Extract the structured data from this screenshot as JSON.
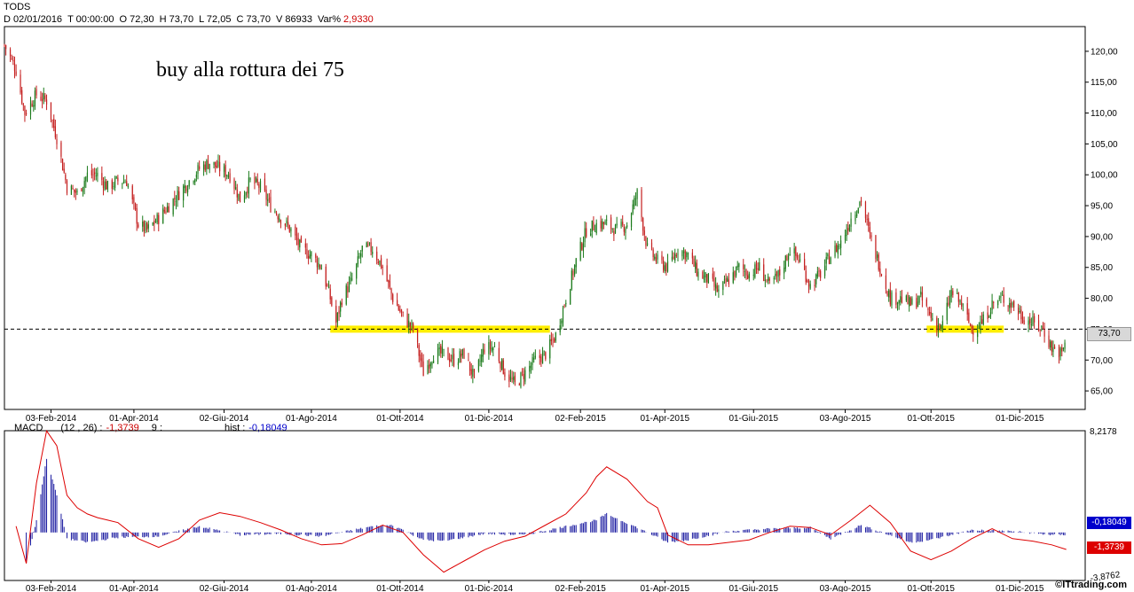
{
  "header": {
    "symbol": "TODS",
    "date": "D 02/01/2016",
    "time": "T 00:00:00",
    "open": "O 72,30",
    "high": "H 73,70",
    "low": "L 72,05",
    "close": "C 73,70",
    "volume": "V 86933",
    "var_label": "Var%",
    "var_value": "2,9330"
  },
  "annotation": "buy alla rottura dei 75",
  "last_price_label": "73,70",
  "macd_header": {
    "name": "MACD",
    "params": "(12 , 26) :",
    "macd_value": "-1,3739",
    "signal_label": "9 :",
    "hist_label": "hist :",
    "hist_value": "-0,18049"
  },
  "macd_axis": {
    "top": "8,2178",
    "bottom": "-3,8762",
    "hist_box": "-0,18049",
    "macd_box": "-1,3739"
  },
  "watermark": "©ITtrading.com",
  "colors": {
    "up": "#1a7a1a",
    "down": "#c41e1e",
    "highlight": "#ffee00",
    "macd_line": "#dd0000",
    "histogram": "#1a1aa0",
    "axis": "#000000",
    "hist_box": "#0000cc",
    "macd_box": "#dd0000"
  },
  "chart_data": [
    {
      "type": "candlestick",
      "title": "TODS",
      "y_ticks": [
        "65,00",
        "70,00",
        "75,00",
        "80,00",
        "85,00",
        "90,00",
        "95,00",
        "100,00",
        "105,00",
        "110,00",
        "115,00",
        "120,00"
      ],
      "ylim": [
        62,
        124
      ],
      "x_tick_labels": [
        "03-Feb-2014",
        "01-Apr-2014",
        "02-Giu-2014",
        "01-Ago-2014",
        "01-Ott-2014",
        "01-Dic-2014",
        "02-Feb-2015",
        "01-Apr-2015",
        "01-Giu-2015",
        "03-Ago-2015",
        "01-Ott-2015",
        "01-Dic-2015"
      ],
      "xlim": [
        "2014-01-02",
        "2016-01-15"
      ],
      "reference_line": 75,
      "close_path": [
        [
          "2014-01-02",
          121
        ],
        [
          "2014-01-10",
          117
        ],
        [
          "2014-01-16",
          110
        ],
        [
          "2014-01-24",
          113
        ],
        [
          "2014-01-31",
          112
        ],
        [
          "2014-02-07",
          106
        ],
        [
          "2014-02-14",
          98
        ],
        [
          "2014-02-21",
          97
        ],
        [
          "2014-02-28",
          100
        ],
        [
          "2014-03-07",
          100
        ],
        [
          "2014-03-14",
          98
        ],
        [
          "2014-03-21",
          99
        ],
        [
          "2014-03-27",
          99
        ],
        [
          "2014-04-04",
          92
        ],
        [
          "2014-04-10",
          91
        ],
        [
          "2014-04-18",
          93
        ],
        [
          "2014-04-25",
          95
        ],
        [
          "2014-05-02",
          97
        ],
        [
          "2014-05-09",
          99
        ],
        [
          "2014-05-16",
          101
        ],
        [
          "2014-05-23",
          102
        ],
        [
          "2014-05-30",
          101
        ],
        [
          "2014-06-06",
          100
        ],
        [
          "2014-06-13",
          96
        ],
        [
          "2014-06-20",
          99
        ],
        [
          "2014-06-27",
          98
        ],
        [
          "2014-07-04",
          95
        ],
        [
          "2014-07-11",
          93
        ],
        [
          "2014-07-18",
          91
        ],
        [
          "2014-07-25",
          88
        ],
        [
          "2014-08-01",
          87
        ],
        [
          "2014-08-08",
          85
        ],
        [
          "2014-08-14",
          80
        ],
        [
          "2014-08-18",
          76
        ],
        [
          "2014-08-22",
          80
        ],
        [
          "2014-08-29",
          83
        ],
        [
          "2014-09-05",
          88
        ],
        [
          "2014-09-12",
          88
        ],
        [
          "2014-09-19",
          85
        ],
        [
          "2014-09-26",
          80
        ],
        [
          "2014-10-03",
          77
        ],
        [
          "2014-10-10",
          75
        ],
        [
          "2014-10-17",
          68
        ],
        [
          "2014-10-24",
          71
        ],
        [
          "2014-10-31",
          71
        ],
        [
          "2014-11-07",
          70
        ],
        [
          "2014-11-14",
          71
        ],
        [
          "2014-11-21",
          67
        ],
        [
          "2014-11-28",
          72
        ],
        [
          "2014-12-05",
          72
        ],
        [
          "2014-12-12",
          68
        ],
        [
          "2014-12-19",
          66
        ],
        [
          "2014-12-26",
          68
        ],
        [
          "2015-01-02",
          70
        ],
        [
          "2015-01-09",
          71
        ],
        [
          "2015-01-16",
          74
        ],
        [
          "2015-01-23",
          80
        ],
        [
          "2015-01-30",
          86
        ],
        [
          "2015-02-06",
          91
        ],
        [
          "2015-02-13",
          92
        ],
        [
          "2015-02-20",
          92
        ],
        [
          "2015-02-27",
          91
        ],
        [
          "2015-03-06",
          92
        ],
        [
          "2015-03-13",
          97
        ],
        [
          "2015-03-20",
          88
        ],
        [
          "2015-03-27",
          86
        ],
        [
          "2015-04-03",
          85
        ],
        [
          "2015-04-10",
          88
        ],
        [
          "2015-04-17",
          87
        ],
        [
          "2015-04-24",
          84
        ],
        [
          "2015-05-01",
          83
        ],
        [
          "2015-05-08",
          81
        ],
        [
          "2015-05-15",
          83
        ],
        [
          "2015-05-22",
          85
        ],
        [
          "2015-05-29",
          84
        ],
        [
          "2015-06-05",
          85
        ],
        [
          "2015-06-12",
          82
        ],
        [
          "2015-06-19",
          84
        ],
        [
          "2015-06-26",
          88
        ],
        [
          "2015-07-03",
          86
        ],
        [
          "2015-07-10",
          82
        ],
        [
          "2015-07-17",
          84
        ],
        [
          "2015-07-24",
          87
        ],
        [
          "2015-07-31",
          89
        ],
        [
          "2015-08-07",
          93
        ],
        [
          "2015-08-14",
          96
        ],
        [
          "2015-08-20",
          90
        ],
        [
          "2015-08-27",
          85
        ],
        [
          "2015-09-03",
          80
        ],
        [
          "2015-09-10",
          80
        ],
        [
          "2015-09-17",
          79
        ],
        [
          "2015-09-24",
          80
        ],
        [
          "2015-10-01",
          77
        ],
        [
          "2015-10-08",
          75
        ],
        [
          "2015-10-15",
          81
        ],
        [
          "2015-10-22",
          79
        ],
        [
          "2015-10-29",
          75
        ],
        [
          "2015-11-05",
          76
        ],
        [
          "2015-11-12",
          79
        ],
        [
          "2015-11-19",
          80
        ],
        [
          "2015-11-26",
          79
        ],
        [
          "2015-12-03",
          77
        ],
        [
          "2015-12-10",
          76
        ],
        [
          "2015-12-17",
          75
        ],
        [
          "2015-12-23",
          72
        ],
        [
          "2015-12-30",
          71
        ],
        [
          "2016-01-02",
          73.7
        ]
      ],
      "highlight_zones": [
        {
          "from": "2014-08-14",
          "to": "2015-01-12",
          "level": 75
        },
        {
          "from": "2015-09-28",
          "to": "2015-11-20",
          "level": 75
        }
      ]
    },
    {
      "type": "line+histogram",
      "title": "MACD",
      "ylim": [
        -3.8762,
        8.2178
      ],
      "series": [
        {
          "name": "MACD",
          "values": [
            [
              "2014-01-10",
              0.5
            ],
            [
              "2014-01-17",
              -2.5
            ],
            [
              "2014-01-24",
              4
            ],
            [
              "2014-01-31",
              8.2
            ],
            [
              "2014-02-07",
              7
            ],
            [
              "2014-02-14",
              3
            ],
            [
              "2014-02-21",
              2
            ],
            [
              "2014-02-28",
              1.5
            ],
            [
              "2014-03-07",
              1.2
            ],
            [
              "2014-03-14",
              1
            ],
            [
              "2014-03-21",
              0.8
            ],
            [
              "2014-04-04",
              -0.5
            ],
            [
              "2014-04-18",
              -1.2
            ],
            [
              "2014-05-02",
              -0.5
            ],
            [
              "2014-05-16",
              1
            ],
            [
              "2014-05-30",
              1.6
            ],
            [
              "2014-06-13",
              1.3
            ],
            [
              "2014-06-27",
              0.8
            ],
            [
              "2014-07-11",
              0.2
            ],
            [
              "2014-07-25",
              -0.5
            ],
            [
              "2014-08-08",
              -1
            ],
            [
              "2014-08-22",
              -0.9
            ],
            [
              "2014-09-05",
              -0.2
            ],
            [
              "2014-09-19",
              0.6
            ],
            [
              "2014-10-03",
              0
            ],
            [
              "2014-10-17",
              -1.8
            ],
            [
              "2014-10-31",
              -3.2
            ],
            [
              "2014-11-14",
              -2.3
            ],
            [
              "2014-11-28",
              -1.4
            ],
            [
              "2014-12-12",
              -0.7
            ],
            [
              "2014-12-26",
              -0.3
            ],
            [
              "2015-01-09",
              0.6
            ],
            [
              "2015-01-23",
              1.5
            ],
            [
              "2015-02-06",
              3.2
            ],
            [
              "2015-02-13",
              4.5
            ],
            [
              "2015-02-20",
              5.3
            ],
            [
              "2015-03-06",
              4.3
            ],
            [
              "2015-03-20",
              2.5
            ],
            [
              "2015-03-27",
              2
            ],
            [
              "2015-04-03",
              -0.2
            ],
            [
              "2015-04-17",
              -1
            ],
            [
              "2015-05-01",
              -1
            ],
            [
              "2015-05-15",
              -0.8
            ],
            [
              "2015-05-29",
              -0.6
            ],
            [
              "2015-06-12",
              0
            ],
            [
              "2015-06-26",
              0.5
            ],
            [
              "2015-07-10",
              0.4
            ],
            [
              "2015-07-24",
              -0.2
            ],
            [
              "2015-08-07",
              1
            ],
            [
              "2015-08-20",
              2.2
            ],
            [
              "2015-09-03",
              0.8
            ],
            [
              "2015-09-17",
              -1.5
            ],
            [
              "2015-10-01",
              -2.2
            ],
            [
              "2015-10-15",
              -1.5
            ],
            [
              "2015-10-29",
              -0.5
            ],
            [
              "2015-11-12",
              0.3
            ],
            [
              "2015-11-26",
              -0.5
            ],
            [
              "2015-12-10",
              -0.7
            ],
            [
              "2015-12-23",
              -1
            ],
            [
              "2016-01-02",
              -1.37
            ]
          ]
        },
        {
          "name": "hist",
          "values": [
            [
              "2014-01-17",
              -2.5
            ],
            [
              "2014-01-24",
              1
            ],
            [
              "2014-01-31",
              6
            ],
            [
              "2014-02-07",
              3
            ],
            [
              "2014-02-14",
              -0.5
            ],
            [
              "2014-02-28",
              -0.8
            ],
            [
              "2014-03-21",
              -0.4
            ],
            [
              "2014-04-18",
              -0.3
            ],
            [
              "2014-05-16",
              0.5
            ],
            [
              "2014-06-13",
              -0.2
            ],
            [
              "2014-07-11",
              -0.1
            ],
            [
              "2014-08-08",
              -0.3
            ],
            [
              "2014-09-12",
              0.5
            ],
            [
              "2014-09-26",
              0.6
            ],
            [
              "2014-10-17",
              -0.6
            ],
            [
              "2014-10-31",
              -0.7
            ],
            [
              "2014-11-28",
              -0.1
            ],
            [
              "2014-12-26",
              -0.2
            ],
            [
              "2015-01-23",
              0.5
            ],
            [
              "2015-02-13",
              1
            ],
            [
              "2015-02-20",
              1.5
            ],
            [
              "2015-03-13",
              0.4
            ],
            [
              "2015-04-03",
              -0.8
            ],
            [
              "2015-04-17",
              -0.6
            ],
            [
              "2015-05-15",
              0.1
            ],
            [
              "2015-06-12",
              0.3
            ],
            [
              "2015-07-10",
              0.4
            ],
            [
              "2015-07-24",
              -0.5
            ],
            [
              "2015-08-14",
              0.6
            ],
            [
              "2015-09-17",
              -0.8
            ],
            [
              "2015-10-01",
              -0.6
            ],
            [
              "2015-10-29",
              0.2
            ],
            [
              "2015-11-26",
              0.1
            ],
            [
              "2015-12-23",
              -0.2
            ],
            [
              "2016-01-02",
              -0.18
            ]
          ]
        }
      ],
      "x_tick_labels": [
        "03-Feb-2014",
        "01-Apr-2014",
        "02-Giu-2014",
        "01-Ago-2014",
        "01-Ott-2014",
        "01-Dic-2014",
        "02-Feb-2015",
        "01-Apr-2015",
        "01-Giu-2015",
        "03-Ago-2015",
        "01-Ott-2015",
        "01-Dic-2015"
      ]
    }
  ]
}
